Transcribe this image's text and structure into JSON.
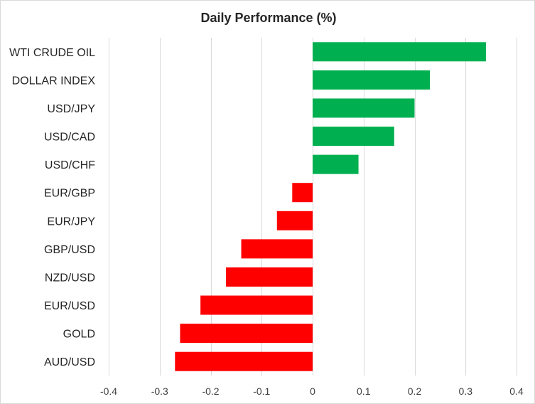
{
  "chart_data": {
    "type": "bar",
    "orientation": "horizontal",
    "title": "Daily Performance  (%)",
    "xlabel": "",
    "ylabel": "",
    "categories": [
      "WTI CRUDE OIL",
      "DOLLAR INDEX",
      "USD/JPY",
      "USD/CAD",
      "USD/CHF",
      "EUR/GBP",
      "EUR/JPY",
      "GBP/USD",
      "NZD/USD",
      "EUR/USD",
      "GOLD",
      "AUD/USD"
    ],
    "values": [
      0.34,
      0.23,
      0.2,
      0.16,
      0.09,
      -0.04,
      -0.07,
      -0.14,
      -0.17,
      -0.22,
      -0.26,
      -0.27
    ],
    "xlim": [
      -0.4,
      0.4
    ],
    "xticks": [
      -0.4,
      -0.3,
      -0.2,
      -0.1,
      0,
      0.1,
      0.2,
      0.3,
      0.4
    ],
    "xtick_labels": [
      "-0.4",
      "-0.3",
      "-0.2",
      "-0.1",
      "0",
      "0.1",
      "0.2",
      "0.3",
      "0.4"
    ],
    "grid": true,
    "legend": "none",
    "colors": {
      "positive": "#00b050",
      "negative": "#ff0000",
      "gridline": "#d9d9d9"
    }
  }
}
